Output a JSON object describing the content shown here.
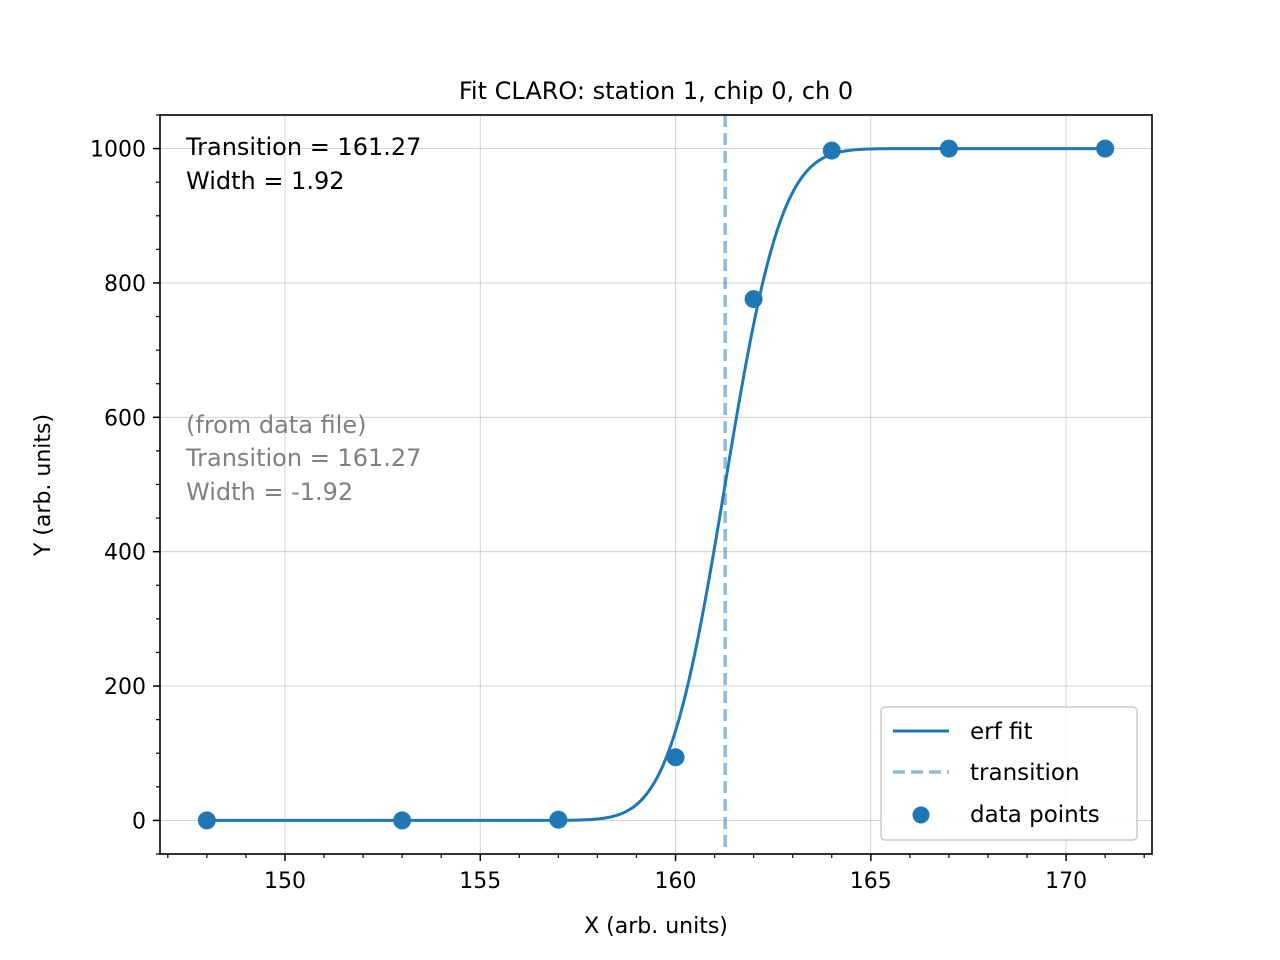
{
  "chart_data": {
    "type": "line",
    "title": "Fit CLARO: station 1, chip 0, ch 0",
    "xlabel": "X (arb. units)",
    "ylabel": "Y (arb. units)",
    "xlim": [
      146.8,
      172.2
    ],
    "ylim": [
      -50,
      1050
    ],
    "x_ticks": [
      150,
      155,
      160,
      165,
      170
    ],
    "y_ticks": [
      0,
      200,
      400,
      600,
      800,
      1000
    ],
    "x_minor_step": 1,
    "y_minor_step": 50,
    "grid": true,
    "fit_params": {
      "transition": 161.27,
      "width": 1.92,
      "amplitude": 1000
    },
    "annotations": {
      "fit_lines": [
        "Transition = 161.27",
        "Width = 1.92"
      ],
      "file_lines": [
        "(from data file)",
        "Transition = 161.27",
        "Width = -1.92"
      ]
    },
    "series": [
      {
        "name": "erf fit",
        "kind": "line",
        "color": "#1f77b4",
        "style": "solid"
      },
      {
        "name": "transition",
        "kind": "vline",
        "x": 161.27,
        "color": "#1f77b4",
        "opacity": 0.5,
        "style": "dashed"
      },
      {
        "name": "data points",
        "kind": "scatter",
        "color": "#1f77b4",
        "x": [
          148,
          153,
          157,
          160,
          162,
          164,
          167,
          171
        ],
        "y": [
          0,
          0,
          1,
          94,
          776,
          997,
          1000,
          1000
        ]
      }
    ],
    "legend_location": "lower right"
  }
}
